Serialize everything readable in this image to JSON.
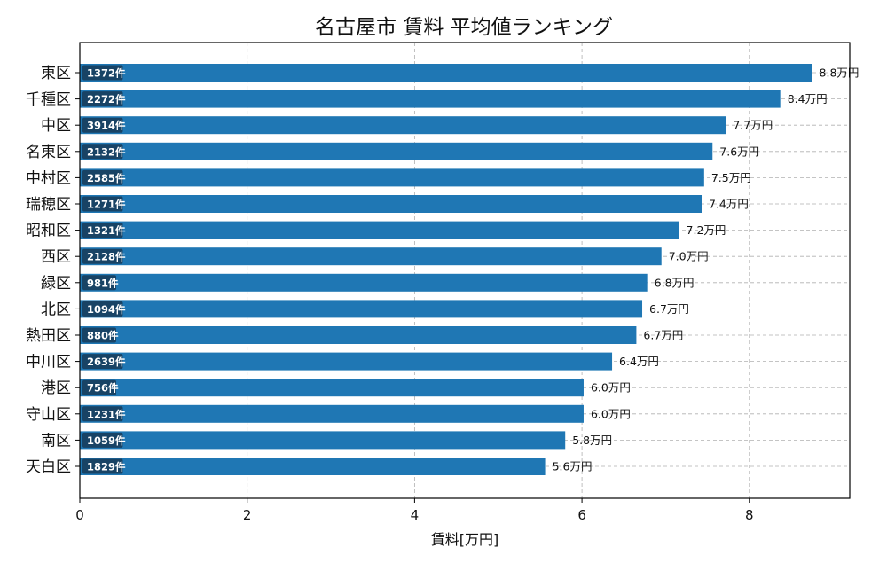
{
  "chart_data": {
    "type": "bar",
    "orientation": "horizontal",
    "title": "名古屋市 賃料 平均値ランキング",
    "xlabel": "賃料[万円]",
    "ylabel": "",
    "xlim": [
      0,
      9.2
    ],
    "xticks": [
      0,
      2,
      4,
      6,
      8
    ],
    "grid": true,
    "categories": [
      "東区",
      "千種区",
      "中区",
      "名東区",
      "中村区",
      "瑞穂区",
      "昭和区",
      "西区",
      "緑区",
      "北区",
      "熱田区",
      "中川区",
      "港区",
      "守山区",
      "南区",
      "天白区"
    ],
    "values": [
      8.75,
      8.37,
      7.72,
      7.56,
      7.46,
      7.43,
      7.16,
      6.95,
      6.78,
      6.72,
      6.65,
      6.36,
      6.02,
      6.02,
      5.8,
      5.56
    ],
    "value_labels": [
      "8.8万円",
      "8.4万円",
      "7.7万円",
      "7.6万円",
      "7.5万円",
      "7.4万円",
      "7.2万円",
      "7.0万円",
      "6.8万円",
      "6.7万円",
      "6.7万円",
      "6.4万円",
      "6.0万円",
      "6.0万円",
      "5.8万円",
      "5.6万円"
    ],
    "counts": [
      "1372件",
      "2272件",
      "3914件",
      "2132件",
      "2585件",
      "1271件",
      "1321件",
      "2128件",
      "981件",
      "1094件",
      "880件",
      "2639件",
      "756件",
      "1231件",
      "1059件",
      "1829件"
    ],
    "colors": {
      "bar": "#1f77b4",
      "count_box": "#173a57",
      "grid": "#b0b0b0"
    }
  }
}
